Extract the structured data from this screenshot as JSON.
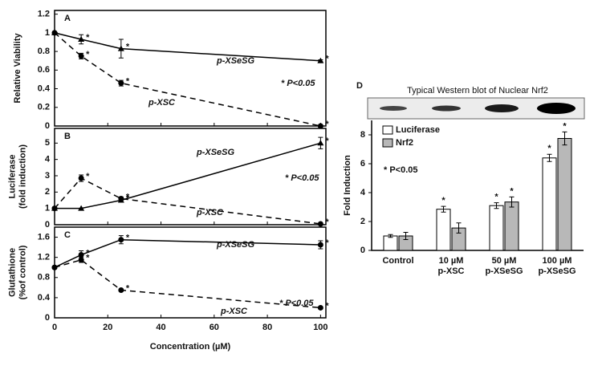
{
  "chart_data": [
    {
      "type": "line",
      "label": "A",
      "ylabel": [
        "Relative Viability"
      ],
      "x": [
        0,
        10,
        25,
        100
      ],
      "xlim": [
        0,
        102
      ],
      "xticks": [
        0,
        20,
        40,
        60,
        80,
        100
      ],
      "ylim": [
        0,
        1.24
      ],
      "yticks": [
        0,
        0.2,
        0.4,
        0.6,
        0.8,
        1,
        1.2
      ],
      "significance_label": "*",
      "annotation": "* P<0.05",
      "series": [
        {
          "name": "p-XSeSG",
          "color": "#000000",
          "marker": "triangle",
          "dashed": false,
          "values": [
            1.0,
            0.93,
            0.83,
            0.7
          ],
          "errors": [
            0,
            0.05,
            0.1,
            0.01
          ],
          "significant": [
            false,
            true,
            true,
            true
          ]
        },
        {
          "name": "p-XSC",
          "color": "#000000",
          "marker": "circle",
          "dashed": true,
          "values": [
            1.0,
            0.75,
            0.46,
            0.0
          ],
          "errors": [
            0,
            0.03,
            0.03,
            0.01
          ],
          "significant": [
            false,
            true,
            true,
            true
          ]
        }
      ]
    },
    {
      "type": "line",
      "label": "B",
      "ylabel": [
        "Luciferase",
        "(fold induction)"
      ],
      "x": [
        0,
        10,
        25,
        100
      ],
      "xlim": [
        0,
        102
      ],
      "xticks": [
        0,
        20,
        40,
        60,
        80,
        100
      ],
      "ylim": [
        0,
        5.9
      ],
      "yticks": [
        0,
        1,
        2,
        3,
        4,
        5
      ],
      "significance_label": "*",
      "annotation": "* P<0.05",
      "series": [
        {
          "name": "p-XSeSG",
          "color": "#000000",
          "marker": "triangle",
          "dashed": false,
          "values": [
            1.0,
            1.0,
            1.5,
            5.0
          ],
          "errors": [
            0,
            0,
            0.1,
            0.35
          ],
          "significant": [
            false,
            false,
            true,
            true
          ]
        },
        {
          "name": "p-XSC",
          "color": "#000000",
          "marker": "circle",
          "dashed": true,
          "values": [
            1.0,
            2.85,
            1.6,
            0.05
          ],
          "errors": [
            0,
            0.2,
            0.1,
            0.05
          ],
          "significant": [
            false,
            true,
            true,
            true
          ]
        }
      ]
    },
    {
      "type": "line",
      "label": "C",
      "ylabel": [
        "Glutathione",
        "(%of control)"
      ],
      "xlabel": "Concentration (µM)",
      "x": [
        0,
        10,
        25,
        100
      ],
      "xlim": [
        0,
        102
      ],
      "xticks": [
        0,
        20,
        40,
        60,
        80,
        100
      ],
      "ylim": [
        0,
        1.8
      ],
      "yticks": [
        0,
        0.4,
        0.8,
        1.2,
        1.6
      ],
      "significance_label": "*",
      "annotation": "* P<0.05",
      "series": [
        {
          "name": "p-XSeSG",
          "color": "#000000",
          "marker": "circle",
          "dashed": false,
          "values": [
            1.0,
            1.25,
            1.55,
            1.45
          ],
          "errors": [
            0,
            0.08,
            0.08,
            0.08
          ],
          "significant": [
            false,
            true,
            true,
            true
          ]
        },
        {
          "name": "p-XSC",
          "color": "#000000",
          "marker": "circle",
          "dashed": true,
          "values": [
            1.0,
            1.15,
            0.55,
            0.2
          ],
          "errors": [
            0,
            0.05,
            0.02,
            0.02
          ],
          "significant": [
            false,
            true,
            true,
            true
          ]
        }
      ]
    },
    {
      "type": "bar",
      "label": "D",
      "title": "Typical Western blot of Nuclear Nrf2",
      "ylabel": [
        "Fold Induction"
      ],
      "categories": [
        [
          "Control"
        ],
        [
          "10 µM",
          "p-XSC"
        ],
        [
          "50 µM",
          "p-XSeSG"
        ],
        [
          "100 µM",
          "p-XSeSG"
        ]
      ],
      "ylim": [
        0,
        9
      ],
      "yticks": [
        0,
        2,
        4,
        6,
        8
      ],
      "significance_label": "*",
      "annotation": "* P<0.05",
      "legend": "top-left",
      "series": [
        {
          "name": "Luciferase",
          "color": "#ffffff",
          "values": [
            1.0,
            2.85,
            3.1,
            6.4
          ],
          "errors": [
            0.1,
            0.2,
            0.2,
            0.25
          ],
          "significant": [
            false,
            true,
            true,
            true
          ]
        },
        {
          "name": "Nrf2",
          "color": "#b8b8b8",
          "values": [
            1.0,
            1.55,
            3.35,
            7.75
          ],
          "errors": [
            0.25,
            0.35,
            0.35,
            0.45
          ],
          "significant": [
            false,
            false,
            true,
            true
          ]
        }
      ]
    }
  ]
}
